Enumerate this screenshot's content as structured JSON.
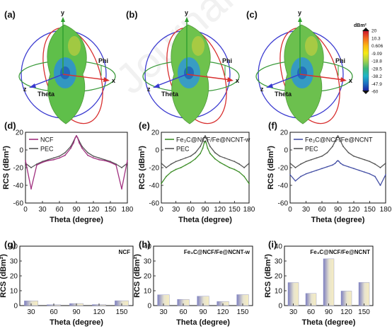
{
  "watermark": "Journal Pre-proof",
  "top_row": {
    "panels": [
      {
        "label": "(a)",
        "axis_y": "y",
        "axis_x": "x",
        "axis_z": "z",
        "phi": "Phi",
        "theta": "Theta",
        "body_color": "#5fbf4a",
        "core_color": "#2a8fd6"
      },
      {
        "label": "(b)",
        "axis_y": "y",
        "axis_x": "x",
        "axis_z": "z",
        "phi": "Phi",
        "theta": "Theta",
        "body_color": "#6ec24d",
        "core_color": "#2f96d8"
      },
      {
        "label": "(c)",
        "axis_y": "y",
        "axis_x": "x",
        "axis_z": "z",
        "phi": "Phi",
        "theta": "Theta",
        "body_color": "#6cc04e",
        "core_color": "#2c93d8"
      }
    ],
    "colorbar": {
      "unit": "dBm²",
      "ticks": [
        "20",
        "10.3",
        "0.606",
        "-9.09",
        "-18.8",
        "-28.5",
        "-38.2",
        "-47.9",
        "-60"
      ],
      "colors": [
        "#c8102e",
        "#f26522",
        "#fcb813",
        "#f5ea14",
        "#a6d24a",
        "#3cb878",
        "#1fb5c9",
        "#1d6fc1",
        "#1b1b9e"
      ]
    }
  },
  "chart_data": [
    {
      "panel": "(d)",
      "type": "line",
      "xlabel": "Theta (degree)",
      "ylabel": "RCS (dBm²)",
      "xlim": [
        0,
        180
      ],
      "ylim": [
        -60,
        20
      ],
      "xticks": [
        "0",
        "30",
        "60",
        "90",
        "120",
        "150",
        "180"
      ],
      "yticks": [
        "20",
        "0",
        "-20",
        "-40",
        "-60"
      ],
      "legend_position": "top-left",
      "series": [
        {
          "name": "NCF",
          "color": "#a0307f",
          "x": [
            0,
            10,
            20,
            30,
            40,
            50,
            60,
            70,
            80,
            85,
            88,
            90,
            92,
            95,
            100,
            110,
            120,
            130,
            140,
            150,
            160,
            170,
            180
          ],
          "y": [
            -12,
            -44,
            -17,
            -14,
            -12,
            -11,
            -9,
            -6,
            2,
            8,
            14,
            16,
            14,
            8,
            2,
            -6,
            -9,
            -11,
            -12,
            -14,
            -17,
            -44,
            -12
          ]
        },
        {
          "name": "PEC",
          "color": "#555555",
          "x": [
            0,
            10,
            20,
            30,
            40,
            50,
            60,
            70,
            80,
            85,
            88,
            90,
            92,
            95,
            100,
            110,
            120,
            130,
            140,
            150,
            160,
            170,
            180
          ],
          "y": [
            -15,
            -20,
            -16,
            -13,
            -11,
            -9,
            -7,
            -3,
            4,
            10,
            14,
            16,
            14,
            10,
            4,
            -3,
            -7,
            -9,
            -11,
            -13,
            -16,
            -20,
            -15
          ]
        }
      ]
    },
    {
      "panel": "(e)",
      "type": "line",
      "xlabel": "Theta (degree)",
      "ylabel": "RCS (dBm²)",
      "xlim": [
        0,
        180
      ],
      "ylim": [
        -60,
        20
      ],
      "xticks": [
        "0",
        "30",
        "60",
        "90",
        "120",
        "150",
        "180"
      ],
      "yticks": [
        "20",
        "0",
        "-20",
        "-40",
        "-60"
      ],
      "legend_position": "top-left",
      "series": [
        {
          "name": "Fe₃C@NCF/Fe@NCNT-w",
          "color": "#3f8f2a",
          "x": [
            0,
            10,
            20,
            30,
            40,
            50,
            60,
            70,
            80,
            85,
            88,
            90,
            92,
            95,
            100,
            110,
            120,
            130,
            140,
            150,
            160,
            170,
            180
          ],
          "y": [
            -38,
            -30,
            -25,
            -22,
            -20,
            -17,
            -14,
            -10,
            -4,
            2,
            8,
            10,
            8,
            2,
            -4,
            -10,
            -14,
            -17,
            -20,
            -22,
            -25,
            -30,
            -38
          ]
        },
        {
          "name": "PEC",
          "color": "#555555",
          "x": [
            0,
            10,
            20,
            30,
            40,
            50,
            60,
            70,
            80,
            85,
            88,
            90,
            92,
            95,
            100,
            110,
            120,
            130,
            140,
            150,
            160,
            170,
            180
          ],
          "y": [
            -15,
            -20,
            -16,
            -13,
            -11,
            -9,
            -7,
            -3,
            4,
            10,
            14,
            16,
            14,
            10,
            4,
            -3,
            -7,
            -9,
            -11,
            -13,
            -16,
            -20,
            -15
          ]
        }
      ]
    },
    {
      "panel": "(f)",
      "type": "line",
      "xlabel": "Theta (degree)",
      "ylabel": "RCS (dBm²)",
      "xlim": [
        0,
        180
      ],
      "ylim": [
        -60,
        20
      ],
      "xticks": [
        "0",
        "30",
        "60",
        "90",
        "120",
        "150",
        "180"
      ],
      "yticks": [
        "20",
        "0",
        "-20",
        "-40",
        "-60"
      ],
      "legend_position": "top-left",
      "series": [
        {
          "name": "Fe₃C@NCF/Fe@NCNT",
          "color": "#4651a6",
          "x": [
            0,
            10,
            20,
            30,
            40,
            50,
            60,
            70,
            80,
            85,
            88,
            90,
            92,
            95,
            100,
            110,
            120,
            130,
            140,
            150,
            160,
            170,
            180
          ],
          "y": [
            -28,
            -35,
            -30,
            -27,
            -25,
            -23,
            -21,
            -19,
            -17,
            -15,
            -13,
            -12,
            -13,
            -15,
            -17,
            -19,
            -21,
            -23,
            -25,
            -27,
            -30,
            -40,
            -28
          ]
        },
        {
          "name": "PEC",
          "color": "#555555",
          "x": [
            0,
            10,
            20,
            30,
            40,
            50,
            60,
            70,
            80,
            85,
            88,
            90,
            92,
            95,
            100,
            110,
            120,
            130,
            140,
            150,
            160,
            170,
            180
          ],
          "y": [
            -15,
            -20,
            -16,
            -13,
            -11,
            -9,
            -7,
            -3,
            4,
            10,
            14,
            16,
            14,
            10,
            4,
            -3,
            -7,
            -9,
            -11,
            -13,
            -16,
            -20,
            -15
          ]
        }
      ]
    },
    {
      "panel": "(g)",
      "type": "bar",
      "xlabel": "Theta (degree)",
      "ylabel": "RCS (dBm²)",
      "ylim": [
        0,
        40
      ],
      "yticks": [
        "0",
        "10",
        "20",
        "30",
        "40"
      ],
      "annotation": "NCF",
      "categories": [
        "30",
        "60",
        "90",
        "120",
        "150"
      ],
      "values": [
        3.2,
        0.6,
        1.4,
        0.7,
        3.3
      ]
    },
    {
      "panel": "(h)",
      "type": "bar",
      "xlabel": "Theta (degree)",
      "ylabel": "RCS (dBm²)",
      "ylim": [
        0,
        40
      ],
      "yticks": [
        "0",
        "10",
        "20",
        "30",
        "40"
      ],
      "annotation": "Fe₃C@NCF/Fe@NCNT-w",
      "categories": [
        "30",
        "60",
        "90",
        "120",
        "150"
      ],
      "values": [
        7.3,
        4.2,
        6.3,
        2.8,
        7.4
      ]
    },
    {
      "panel": "(i)",
      "type": "bar",
      "xlabel": "Theta (degree)",
      "ylabel": "RCS (dBm²)",
      "ylim": [
        0,
        40
      ],
      "yticks": [
        "0",
        "10",
        "20",
        "30",
        "40"
      ],
      "annotation": "Fe₃C@NCF/Fe@NCNT",
      "categories": [
        "30",
        "60",
        "90",
        "120",
        "150"
      ],
      "values": [
        15.5,
        8.2,
        31.5,
        9.8,
        15.6
      ]
    }
  ]
}
